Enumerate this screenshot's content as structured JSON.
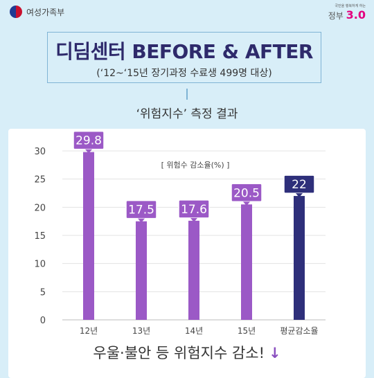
{
  "ministry": {
    "name": "여성가족부",
    "logo_icon": "taegeuk-emblem-icon"
  },
  "gov_logo": {
    "tagline": "국민을 행복하게 하는",
    "word": "정부",
    "num": "3.0"
  },
  "title": {
    "main": "디딤센터 BEFORE & AFTER",
    "sub": "(‘12~‘15년 장기과정 수료생 499명 대상)"
  },
  "subtitle": "‘위험지수’ 측정 결과",
  "bottom": {
    "text": "우울·불안 등 위험지수 감소!",
    "arrow": "↓"
  },
  "colors": {
    "background": "#d8eef8",
    "bar": "#9b59c6",
    "bar_dark": "#4b4d9c",
    "highlight_bar": "#2e2f7a",
    "grid": "#e3e3e3"
  },
  "chart_data": {
    "type": "bar",
    "title": "",
    "annotation": "[ 위험수 감소율(%) ]",
    "xlabel": "",
    "ylabel": "",
    "categories": [
      "12년",
      "13년",
      "14년",
      "15년",
      "평균감소율"
    ],
    "values": [
      29.8,
      17.5,
      17.6,
      20.5,
      22
    ],
    "data_labels": [
      "29.8",
      "17.5",
      "17.6",
      "20.5",
      "22"
    ],
    "yticks": [
      "0",
      "5",
      "10",
      "15",
      "20",
      "25",
      "30"
    ],
    "ylim": [
      0,
      30
    ],
    "grid": true,
    "highlight_index": 4
  }
}
